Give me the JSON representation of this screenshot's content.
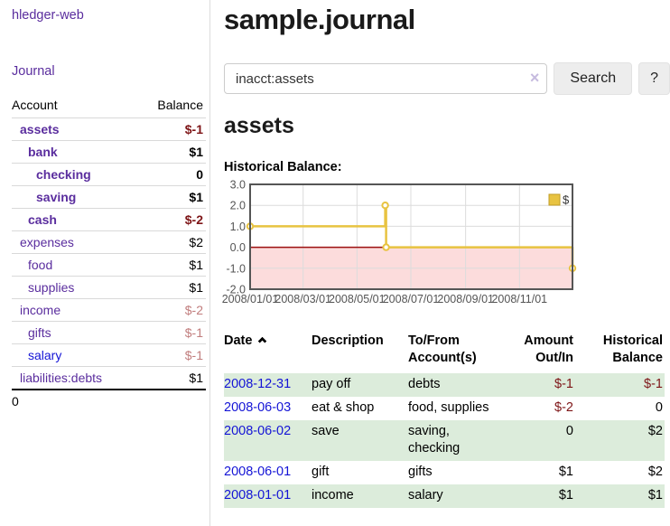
{
  "app": {
    "brand": "hledger-web",
    "nav_journal": "Journal"
  },
  "colors": {
    "link_purple": "#5a2d9e",
    "link_blue": "#1414d6",
    "negative_dark_red": "#7e1517",
    "negative_light_rose": "#c17d7d",
    "row_stripe_green": "#dcecdb",
    "chart_gold": "#e8c341",
    "chart_negative_pink": "#fcdcdc",
    "chart_zero_line_red": "#9c0f0f"
  },
  "sidebar": {
    "headers": {
      "account": "Account",
      "balance": "Balance"
    },
    "accounts": [
      {
        "name": "assets",
        "balance": "$-1",
        "indent": 1,
        "bold": true,
        "bal_cls": "negd",
        "blue": false
      },
      {
        "name": "bank",
        "balance": "$1",
        "indent": 2,
        "bold": true,
        "bal_cls": "",
        "blue": false
      },
      {
        "name": "checking",
        "balance": "0",
        "indent": 3,
        "bold": true,
        "bal_cls": "",
        "blue": false
      },
      {
        "name": "saving",
        "balance": "$1",
        "indent": 3,
        "bold": true,
        "bal_cls": "",
        "blue": false
      },
      {
        "name": "cash",
        "balance": "$-2",
        "indent": 2,
        "bold": true,
        "bal_cls": "negd",
        "blue": false
      },
      {
        "name": "expenses",
        "balance": "$2",
        "indent": 1,
        "bold": false,
        "bal_cls": "",
        "blue": false
      },
      {
        "name": "food",
        "balance": "$1",
        "indent": 2,
        "bold": false,
        "bal_cls": "",
        "blue": false
      },
      {
        "name": "supplies",
        "balance": "$1",
        "indent": 2,
        "bold": false,
        "bal_cls": "",
        "blue": false
      },
      {
        "name": "income",
        "balance": "$-2",
        "indent": 1,
        "bold": false,
        "bal_cls": "negl",
        "blue": false
      },
      {
        "name": "gifts",
        "balance": "$-1",
        "indent": 2,
        "bold": false,
        "bal_cls": "negl",
        "blue": false
      },
      {
        "name": "salary",
        "balance": "$-1",
        "indent": 2,
        "bold": false,
        "bal_cls": "negl",
        "blue": true
      },
      {
        "name": "liabilities:debts",
        "balance": "$1",
        "indent": 1,
        "bold": false,
        "bal_cls": "",
        "blue": false
      }
    ],
    "total": "0"
  },
  "header": {
    "title": "sample.journal"
  },
  "search": {
    "value": "inacct:assets",
    "clear_icon": "×",
    "button": "Search",
    "help_button": "?"
  },
  "account_page": {
    "title": "assets",
    "chart_label": "Historical Balance:"
  },
  "chart_data": {
    "type": "line",
    "title": "Historical Balance",
    "step": true,
    "legend": "$",
    "legend_position": "top-right",
    "grid": true,
    "x_range": [
      "2008-01-01",
      "2008-12-31"
    ],
    "y_min": -2.0,
    "y_max": 3.0,
    "y_ticks": [
      "3.0",
      "2.0",
      "1.0",
      "0.0",
      "-1.0",
      "-2.0"
    ],
    "x_ticks": [
      "2008/01/01",
      "2008/03/01",
      "2008/05/01",
      "2008/07/01",
      "2008/09/01",
      "2008/11/01"
    ],
    "series": [
      {
        "name": "$",
        "color": "#e8c341",
        "points": [
          [
            "2008-01-01",
            1
          ],
          [
            "2008-06-02",
            2
          ],
          [
            "2008-06-03",
            0
          ],
          [
            "2008-12-31",
            -1
          ]
        ]
      }
    ],
    "negative_fill": "#fcdcdc",
    "zero_line_color": "#9c0f0f"
  },
  "register": {
    "columns": [
      {
        "lines": [
          "Date"
        ],
        "sort": "asc"
      },
      {
        "lines": [
          "Description"
        ]
      },
      {
        "lines": [
          "To/From",
          "Account(s)"
        ]
      },
      {
        "lines": [
          "Amount",
          "Out/In"
        ],
        "align": "right"
      },
      {
        "lines": [
          "Historical",
          "Balance"
        ],
        "align": "right"
      }
    ],
    "rows": [
      {
        "date": "2008-12-31",
        "description": "pay off",
        "accounts": [
          "debts"
        ],
        "amount": "$-1",
        "amount_negative": true,
        "balance": "$-1",
        "balance_negative": true
      },
      {
        "date": "2008-06-03",
        "description": "eat & shop",
        "accounts": [
          "food, supplies"
        ],
        "amount": "$-2",
        "amount_negative": true,
        "balance": "0",
        "balance_negative": false
      },
      {
        "date": "2008-06-02",
        "description": "save",
        "accounts": [
          "saving,",
          "checking"
        ],
        "amount": "0",
        "amount_negative": false,
        "balance": "$2",
        "balance_negative": false
      },
      {
        "date": "2008-06-01",
        "description": "gift",
        "accounts": [
          "gifts"
        ],
        "amount": "$1",
        "amount_negative": false,
        "balance": "$2",
        "balance_negative": false
      },
      {
        "date": "2008-01-01",
        "description": "income",
        "accounts": [
          "salary"
        ],
        "amount": "$1",
        "amount_negative": false,
        "balance": "$1",
        "balance_negative": false
      }
    ]
  }
}
